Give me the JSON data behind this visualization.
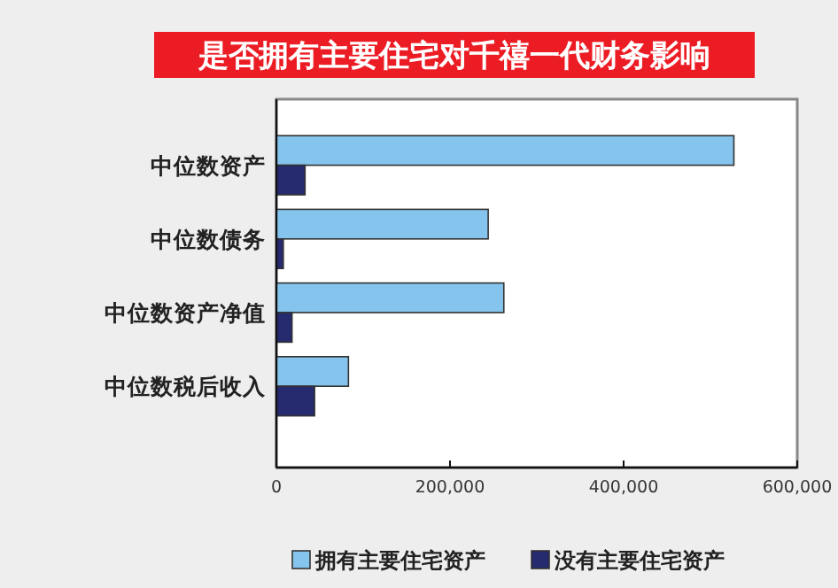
{
  "chart_data": {
    "type": "bar",
    "orientation": "horizontal",
    "title": "是否拥有主要住宅对千禧一代财务影响",
    "categories": [
      "中位数资产",
      "中位数债务",
      "中位数资产净值",
      "中位数税后收入"
    ],
    "series": [
      {
        "name": "拥有主要住宅资产",
        "color": "#85c4ec",
        "values": [
          527000,
          244000,
          262000,
          83000
        ]
      },
      {
        "name": "没有主要住宅资产",
        "color": "#262a6e",
        "values": [
          33000,
          8000,
          18000,
          44000
        ]
      }
    ],
    "xlim": [
      0,
      600000
    ],
    "xticks": [
      {
        "value": 0,
        "label": "0"
      },
      {
        "value": 200000,
        "label": "200,000"
      },
      {
        "value": 400000,
        "label": "400,000"
      },
      {
        "value": 600000,
        "label": "600,000"
      }
    ],
    "legend": "bottom",
    "grid": false
  }
}
